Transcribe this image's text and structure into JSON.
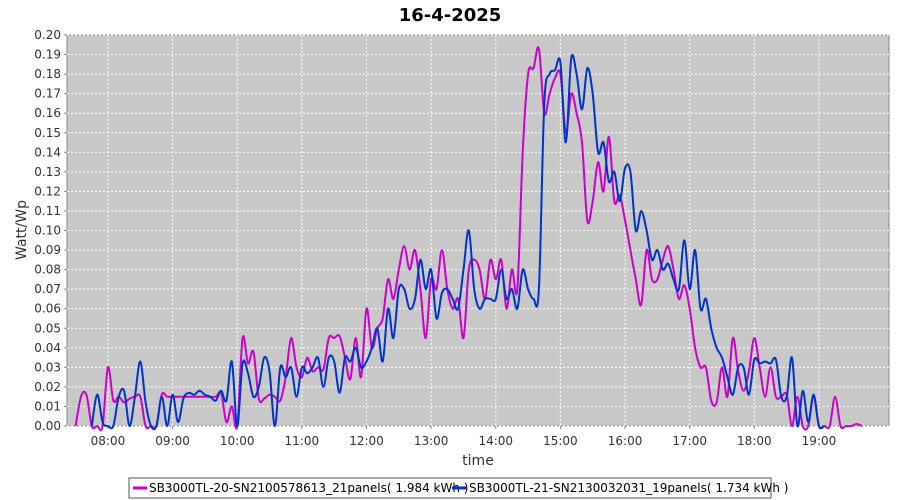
{
  "chart_data": {
    "type": "line",
    "title": "16-4-2025",
    "xlabel": "time",
    "ylabel": "Watt/Wp",
    "xlim": [
      "07:22",
      "20:05"
    ],
    "ylim": [
      0,
      0.2
    ],
    "x_ticks": [
      "08:00",
      "09:00",
      "10:00",
      "11:00",
      "12:00",
      "13:00",
      "14:00",
      "15:00",
      "16:00",
      "17:00",
      "18:00",
      "19:00"
    ],
    "y_ticks": [
      "0.00",
      "0.01",
      "0.02",
      "0.03",
      "0.04",
      "0.05",
      "0.06",
      "0.07",
      "0.08",
      "0.09",
      "0.10",
      "0.11",
      "0.12",
      "0.13",
      "0.14",
      "0.15",
      "0.16",
      "0.17",
      "0.18",
      "0.19",
      "0.20"
    ],
    "grid": true,
    "legend_position": "bottom",
    "series": [
      {
        "name": "SB3000TL-20-SN2100578613_21panels( 1.984 kWh )",
        "color": "#cc00cc",
        "points": [
          [
            "07:30",
            0.0
          ],
          [
            "07:35",
            0.015
          ],
          [
            "07:40",
            0.016
          ],
          [
            "07:45",
            0.0
          ],
          [
            "07:50",
            0.0
          ],
          [
            "07:55",
            0.0
          ],
          [
            "08:00",
            0.03
          ],
          [
            "08:05",
            0.013
          ],
          [
            "08:10",
            0.015
          ],
          [
            "08:15",
            0.012
          ],
          [
            "08:20",
            0.014
          ],
          [
            "08:25",
            0.015
          ],
          [
            "08:30",
            0.015
          ],
          [
            "08:35",
            0.0
          ],
          [
            "08:40",
            0.0
          ],
          [
            "08:45",
            0.0
          ],
          [
            "08:50",
            0.016
          ],
          [
            "08:55",
            0.015
          ],
          [
            "09:00",
            0.015
          ],
          [
            "09:10",
            0.015
          ],
          [
            "09:20",
            0.015
          ],
          [
            "09:30",
            0.015
          ],
          [
            "09:40",
            0.015
          ],
          [
            "09:45",
            0.017
          ],
          [
            "09:50",
            0.002
          ],
          [
            "09:55",
            0.01
          ],
          [
            "10:00",
            0.0
          ],
          [
            "10:05",
            0.045
          ],
          [
            "10:10",
            0.032
          ],
          [
            "10:15",
            0.038
          ],
          [
            "10:20",
            0.014
          ],
          [
            "10:25",
            0.014
          ],
          [
            "10:30",
            0.016
          ],
          [
            "10:35",
            0.015
          ],
          [
            "10:40",
            0.013
          ],
          [
            "10:45",
            0.025
          ],
          [
            "10:50",
            0.045
          ],
          [
            "10:55",
            0.03
          ],
          [
            "11:00",
            0.025
          ],
          [
            "11:05",
            0.035
          ],
          [
            "11:10",
            0.028
          ],
          [
            "11:15",
            0.03
          ],
          [
            "11:20",
            0.029
          ],
          [
            "11:25",
            0.045
          ],
          [
            "11:30",
            0.045
          ],
          [
            "11:35",
            0.046
          ],
          [
            "11:40",
            0.035
          ],
          [
            "11:45",
            0.024
          ],
          [
            "11:50",
            0.045
          ],
          [
            "11:55",
            0.025
          ],
          [
            "12:00",
            0.06
          ],
          [
            "12:05",
            0.04
          ],
          [
            "12:10",
            0.05
          ],
          [
            "12:15",
            0.055
          ],
          [
            "12:20",
            0.075
          ],
          [
            "12:25",
            0.065
          ],
          [
            "12:30",
            0.08
          ],
          [
            "12:35",
            0.092
          ],
          [
            "12:40",
            0.08
          ],
          [
            "12:45",
            0.09
          ],
          [
            "12:50",
            0.07
          ],
          [
            "12:55",
            0.045
          ],
          [
            "13:00",
            0.075
          ],
          [
            "13:05",
            0.07
          ],
          [
            "13:10",
            0.09
          ],
          [
            "13:15",
            0.07
          ],
          [
            "13:20",
            0.06
          ],
          [
            "13:25",
            0.065
          ],
          [
            "13:30",
            0.045
          ],
          [
            "13:35",
            0.08
          ],
          [
            "13:40",
            0.085
          ],
          [
            "13:45",
            0.08
          ],
          [
            "13:50",
            0.065
          ],
          [
            "13:55",
            0.085
          ],
          [
            "14:00",
            0.075
          ],
          [
            "14:05",
            0.085
          ],
          [
            "14:10",
            0.06
          ],
          [
            "14:15",
            0.08
          ],
          [
            "14:20",
            0.07
          ],
          [
            "14:25",
            0.14
          ],
          [
            "14:30",
            0.18
          ],
          [
            "14:35",
            0.183
          ],
          [
            "14:40",
            0.193
          ],
          [
            "14:45",
            0.16
          ],
          [
            "14:50",
            0.17
          ],
          [
            "14:55",
            0.178
          ],
          [
            "15:00",
            0.18
          ],
          [
            "15:05",
            0.15
          ],
          [
            "15:10",
            0.17
          ],
          [
            "15:15",
            0.16
          ],
          [
            "15:20",
            0.145
          ],
          [
            "15:25",
            0.105
          ],
          [
            "15:30",
            0.115
          ],
          [
            "15:35",
            0.135
          ],
          [
            "15:40",
            0.12
          ],
          [
            "15:45",
            0.148
          ],
          [
            "15:50",
            0.115
          ],
          [
            "15:55",
            0.118
          ],
          [
            "16:00",
            0.105
          ],
          [
            "16:05",
            0.09
          ],
          [
            "16:10",
            0.075
          ],
          [
            "16:15",
            0.062
          ],
          [
            "16:20",
            0.09
          ],
          [
            "16:25",
            0.075
          ],
          [
            "16:30",
            0.075
          ],
          [
            "16:35",
            0.085
          ],
          [
            "16:40",
            0.092
          ],
          [
            "16:45",
            0.08
          ],
          [
            "16:50",
            0.065
          ],
          [
            "16:55",
            0.072
          ],
          [
            "17:00",
            0.06
          ],
          [
            "17:05",
            0.04
          ],
          [
            "17:10",
            0.03
          ],
          [
            "17:15",
            0.03
          ],
          [
            "17:20",
            0.013
          ],
          [
            "17:25",
            0.012
          ],
          [
            "17:30",
            0.03
          ],
          [
            "17:35",
            0.015
          ],
          [
            "17:40",
            0.045
          ],
          [
            "17:45",
            0.028
          ],
          [
            "17:50",
            0.018
          ],
          [
            "17:55",
            0.028
          ],
          [
            "18:00",
            0.045
          ],
          [
            "18:05",
            0.03
          ],
          [
            "18:10",
            0.015
          ],
          [
            "18:15",
            0.03
          ],
          [
            "18:20",
            0.015
          ],
          [
            "18:25",
            0.015
          ],
          [
            "18:30",
            0.016
          ],
          [
            "18:35",
            0.0
          ],
          [
            "18:40",
            0.015
          ],
          [
            "18:45",
            0.0
          ],
          [
            "18:50",
            0.0
          ],
          [
            "18:55",
            0.015
          ],
          [
            "19:00",
            0.0
          ],
          [
            "19:05",
            0.0
          ],
          [
            "19:10",
            0.0
          ],
          [
            "19:15",
            0.015
          ],
          [
            "19:20",
            0.0
          ],
          [
            "19:25",
            0.0
          ],
          [
            "19:30",
            0.0
          ],
          [
            "19:35",
            0.001
          ],
          [
            "19:40",
            0.0
          ]
        ]
      },
      {
        "name": "SB3000TL-21-SN2130032031_19panels( 1.734 kWh )",
        "color": "#0033cc",
        "points": [
          [
            "07:45",
            0.0
          ],
          [
            "07:50",
            0.016
          ],
          [
            "07:55",
            0.002
          ],
          [
            "08:00",
            0.0
          ],
          [
            "08:05",
            0.0
          ],
          [
            "08:10",
            0.015
          ],
          [
            "08:15",
            0.018
          ],
          [
            "08:20",
            0.0
          ],
          [
            "08:25",
            0.015
          ],
          [
            "08:30",
            0.033
          ],
          [
            "08:35",
            0.012
          ],
          [
            "08:40",
            0.0
          ],
          [
            "08:45",
            0.0
          ],
          [
            "08:50",
            0.015
          ],
          [
            "08:55",
            0.0
          ],
          [
            "09:00",
            0.016
          ],
          [
            "09:05",
            0.002
          ],
          [
            "09:10",
            0.014
          ],
          [
            "09:15",
            0.017
          ],
          [
            "09:20",
            0.016
          ],
          [
            "09:25",
            0.018
          ],
          [
            "09:30",
            0.016
          ],
          [
            "09:35",
            0.015
          ],
          [
            "09:40",
            0.013
          ],
          [
            "09:45",
            0.018
          ],
          [
            "09:50",
            0.013
          ],
          [
            "09:55",
            0.033
          ],
          [
            "10:00",
            0.0
          ],
          [
            "10:05",
            0.032
          ],
          [
            "10:10",
            0.027
          ],
          [
            "10:15",
            0.015
          ],
          [
            "10:20",
            0.02
          ],
          [
            "10:25",
            0.035
          ],
          [
            "10:30",
            0.028
          ],
          [
            "10:35",
            0.0
          ],
          [
            "10:40",
            0.03
          ],
          [
            "10:45",
            0.025
          ],
          [
            "10:50",
            0.03
          ],
          [
            "10:55",
            0.015
          ],
          [
            "11:00",
            0.03
          ],
          [
            "11:05",
            0.027
          ],
          [
            "11:10",
            0.03
          ],
          [
            "11:15",
            0.035
          ],
          [
            "11:20",
            0.02
          ],
          [
            "11:25",
            0.035
          ],
          [
            "11:30",
            0.033
          ],
          [
            "11:35",
            0.017
          ],
          [
            "11:40",
            0.035
          ],
          [
            "11:45",
            0.033
          ],
          [
            "11:50",
            0.04
          ],
          [
            "11:55",
            0.03
          ],
          [
            "12:00",
            0.033
          ],
          [
            "12:05",
            0.04
          ],
          [
            "12:10",
            0.05
          ],
          [
            "12:15",
            0.033
          ],
          [
            "12:20",
            0.06
          ],
          [
            "12:25",
            0.045
          ],
          [
            "12:30",
            0.07
          ],
          [
            "12:35",
            0.07
          ],
          [
            "12:40",
            0.06
          ],
          [
            "12:45",
            0.065
          ],
          [
            "12:50",
            0.085
          ],
          [
            "12:55",
            0.07
          ],
          [
            "13:00",
            0.08
          ],
          [
            "13:05",
            0.055
          ],
          [
            "13:10",
            0.068
          ],
          [
            "13:15",
            0.07
          ],
          [
            "13:20",
            0.065
          ],
          [
            "13:25",
            0.06
          ],
          [
            "13:30",
            0.08
          ],
          [
            "13:35",
            0.1
          ],
          [
            "13:40",
            0.07
          ],
          [
            "13:45",
            0.06
          ],
          [
            "13:50",
            0.065
          ],
          [
            "13:55",
            0.065
          ],
          [
            "14:00",
            0.065
          ],
          [
            "14:05",
            0.08
          ],
          [
            "14:10",
            0.065
          ],
          [
            "14:15",
            0.07
          ],
          [
            "14:20",
            0.06
          ],
          [
            "14:25",
            0.08
          ],
          [
            "14:30",
            0.07
          ],
          [
            "14:35",
            0.065
          ],
          [
            "14:40",
            0.07
          ],
          [
            "14:45",
            0.165
          ],
          [
            "14:50",
            0.18
          ],
          [
            "14:55",
            0.182
          ],
          [
            "15:00",
            0.186
          ],
          [
            "15:05",
            0.145
          ],
          [
            "15:10",
            0.188
          ],
          [
            "15:15",
            0.18
          ],
          [
            "15:20",
            0.162
          ],
          [
            "15:25",
            0.183
          ],
          [
            "15:30",
            0.17
          ],
          [
            "15:35",
            0.14
          ],
          [
            "15:40",
            0.145
          ],
          [
            "15:45",
            0.125
          ],
          [
            "15:50",
            0.13
          ],
          [
            "15:55",
            0.115
          ],
          [
            "16:00",
            0.132
          ],
          [
            "16:05",
            0.13
          ],
          [
            "16:10",
            0.1
          ],
          [
            "16:15",
            0.11
          ],
          [
            "16:20",
            0.1
          ],
          [
            "16:25",
            0.085
          ],
          [
            "16:30",
            0.09
          ],
          [
            "16:35",
            0.08
          ],
          [
            "16:40",
            0.083
          ],
          [
            "16:45",
            0.075
          ],
          [
            "16:50",
            0.07
          ],
          [
            "16:55",
            0.095
          ],
          [
            "17:00",
            0.07
          ],
          [
            "17:05",
            0.09
          ],
          [
            "17:10",
            0.06
          ],
          [
            "17:15",
            0.065
          ],
          [
            "17:20",
            0.05
          ],
          [
            "17:25",
            0.04
          ],
          [
            "17:30",
            0.035
          ],
          [
            "17:35",
            0.025
          ],
          [
            "17:40",
            0.016
          ],
          [
            "17:45",
            0.03
          ],
          [
            "17:50",
            0.03
          ],
          [
            "17:55",
            0.016
          ],
          [
            "18:00",
            0.034
          ],
          [
            "18:05",
            0.032
          ],
          [
            "18:10",
            0.033
          ],
          [
            "18:15",
            0.032
          ],
          [
            "18:20",
            0.034
          ],
          [
            "18:25",
            0.015
          ],
          [
            "18:30",
            0.015
          ],
          [
            "18:35",
            0.035
          ],
          [
            "18:40",
            0.0
          ],
          [
            "18:45",
            0.018
          ],
          [
            "18:50",
            0.002
          ],
          [
            "18:55",
            0.016
          ],
          [
            "19:00",
            0.0
          ],
          [
            "19:05",
            0.0
          ]
        ]
      }
    ]
  }
}
